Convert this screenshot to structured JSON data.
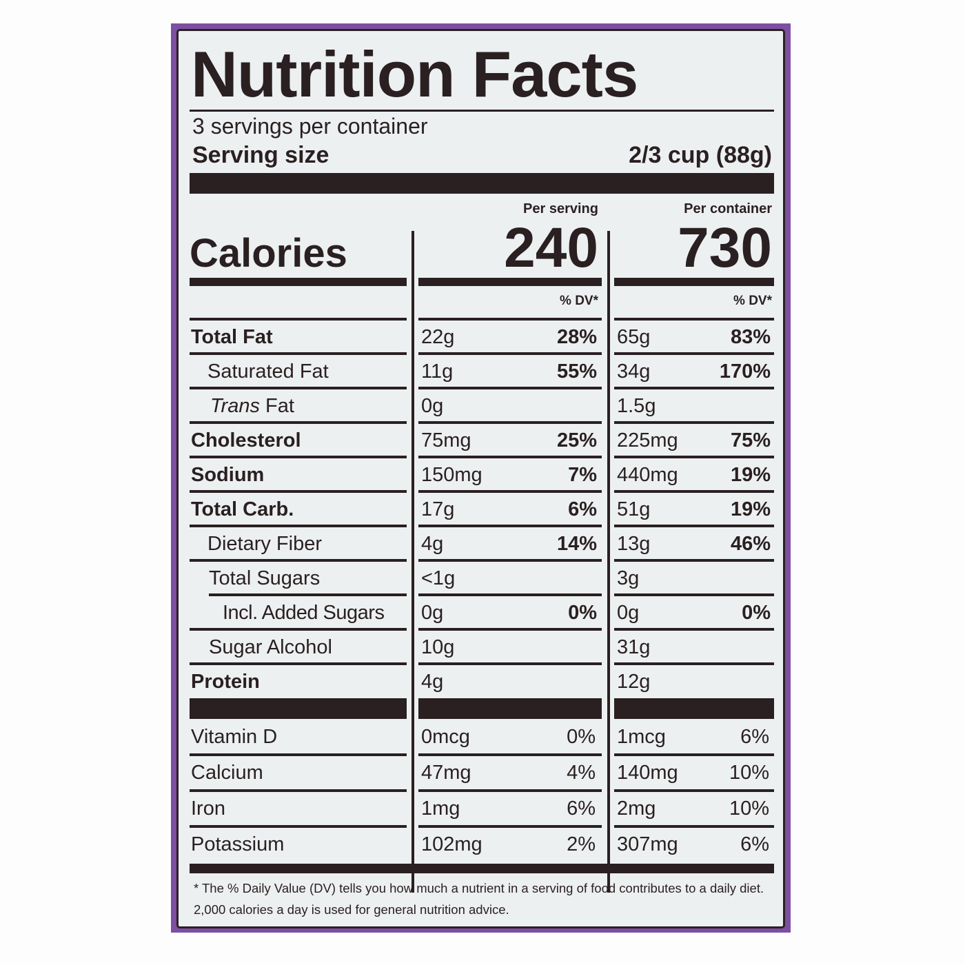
{
  "label": {
    "title": "Nutrition Facts",
    "servings_per_container": "3 servings per container",
    "serving_size_label": "Serving size",
    "serving_size_value": "2/3 cup (88g)",
    "calories_label": "Calories",
    "per_serving_label": "Per serving",
    "per_container_label": "Per container",
    "calories_per_serving": "240",
    "calories_per_container": "730",
    "dv_header": "% DV*",
    "nutrients": [
      {
        "name": "Total Fat",
        "serving": "22g",
        "serving_dv": "28%",
        "container": "65g",
        "container_dv": "83%"
      },
      {
        "name": "Saturated Fat",
        "serving": "11g",
        "serving_dv": "55%",
        "container": "34g",
        "container_dv": "170%"
      },
      {
        "name": "Trans",
        "name_suffix": " Fat",
        "serving": "0g",
        "serving_dv": "",
        "container": "1.5g",
        "container_dv": ""
      },
      {
        "name": "Cholesterol",
        "serving": "75mg",
        "serving_dv": "25%",
        "container": "225mg",
        "container_dv": "75%"
      },
      {
        "name": "Sodium",
        "serving": "150mg",
        "serving_dv": "7%",
        "container": "440mg",
        "container_dv": "19%"
      },
      {
        "name": "Total Carb.",
        "serving": "17g",
        "serving_dv": "6%",
        "container": "51g",
        "container_dv": "19%"
      },
      {
        "name": "Dietary Fiber",
        "serving": "4g",
        "serving_dv": "14%",
        "container": "13g",
        "container_dv": "46%"
      },
      {
        "name": "Total Sugars",
        "serving": "<1g",
        "serving_dv": "",
        "container": "3g",
        "container_dv": ""
      },
      {
        "name": "Incl. Added Sugars",
        "serving": "0g",
        "serving_dv": "0%",
        "container": "0g",
        "container_dv": "0%"
      },
      {
        "name": "Sugar Alcohol",
        "serving": "10g",
        "serving_dv": "",
        "container": "31g",
        "container_dv": ""
      },
      {
        "name": "Protein",
        "serving": "4g",
        "serving_dv": "",
        "container": "12g",
        "container_dv": ""
      }
    ],
    "vitamins": [
      {
        "name": "Vitamin D",
        "serving": "0mcg",
        "serving_dv": "0%",
        "container": "1mcg",
        "container_dv": "6%"
      },
      {
        "name": "Calcium",
        "serving": "47mg",
        "serving_dv": "4%",
        "container": "140mg",
        "container_dv": "10%"
      },
      {
        "name": "Iron",
        "serving": "1mg",
        "serving_dv": "6%",
        "container": "2mg",
        "container_dv": "10%"
      },
      {
        "name": "Potassium",
        "serving": "102mg",
        "serving_dv": "2%",
        "container": "307mg",
        "container_dv": "6%"
      }
    ],
    "footnote": "* The % Daily Value (DV) tells you how much a nutrient in a serving of food contributes to a daily diet. 2,000 calories a day is used for general nutrition advice."
  },
  "colors": {
    "package_purple": "#7d4fa2",
    "label_background": "#ecf0f0",
    "ink": "#2a1f21"
  }
}
